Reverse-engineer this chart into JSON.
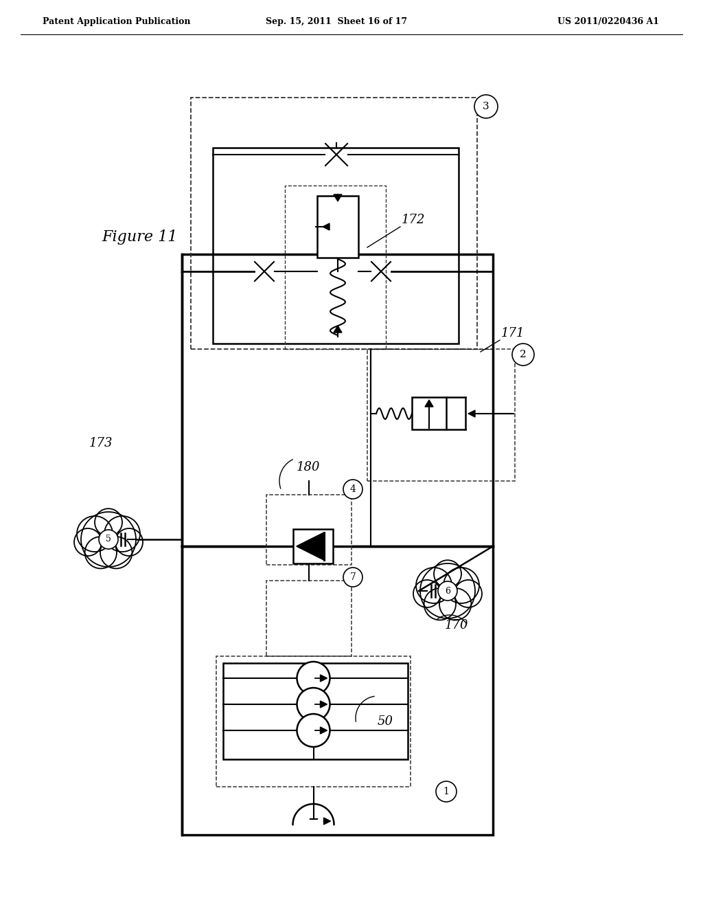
{
  "title_left": "Patent Application Publication",
  "title_mid": "Sep. 15, 2011  Sheet 16 of 17",
  "title_right": "US 2011/0220436 A1",
  "figure_label": "Figure 11",
  "bg_color": "#ffffff"
}
